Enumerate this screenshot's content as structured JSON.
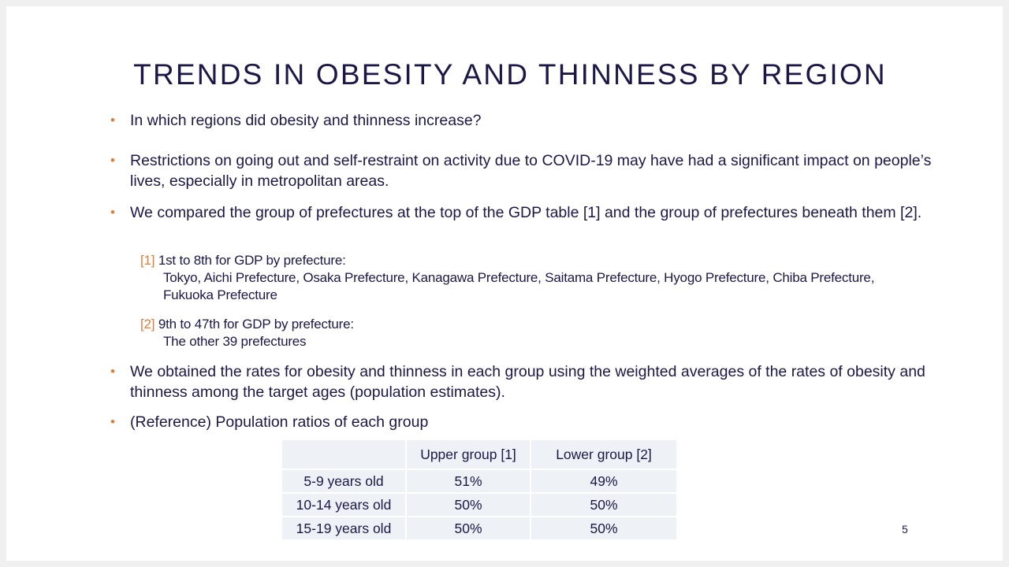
{
  "slide": {
    "title": "TRENDS IN OBESITY AND THINNESS BY REGION",
    "bullets": [
      "In which regions did obesity and thinness increase?",
      "Restrictions on going out and self-restraint on activity due to COVID-19 may have had a significant impact on people’s lives, especially in metropolitan areas.",
      "We compared the group of prefectures at the top of the GDP table [1] and the group of prefectures beneath them [2].",
      "We obtained the rates for obesity and thinness in each group using the weighted averages of the rates of obesity and thinness among the target ages (population estimates).",
      "(Reference) Population ratios of each group"
    ],
    "refs": [
      {
        "mark": "[1]",
        "heading": "1st to 8th for GDP by prefecture:",
        "detail": "Tokyo, Aichi Prefecture, Osaka Prefecture, Kanagawa Prefecture, Saitama Prefecture, Hyogo Prefecture, Chiba Prefecture, Fukuoka Prefecture"
      },
      {
        "mark": "[2]",
        "heading": "9th to 47th for GDP by prefecture:",
        "detail": "The other 39 prefectures"
      }
    ],
    "table": {
      "headers": [
        "",
        "Upper group [1]",
        "Lower group [2]"
      ],
      "rows": [
        [
          "5-9 years old",
          "51%",
          "49%"
        ],
        [
          "10-14 years old",
          "50%",
          "50%"
        ],
        [
          "15-19 years old",
          "50%",
          "50%"
        ]
      ]
    },
    "page_number": "5",
    "colors": {
      "text": "#1b1847",
      "accent": "#e07b39",
      "table_fill": "#eef1f6"
    }
  }
}
